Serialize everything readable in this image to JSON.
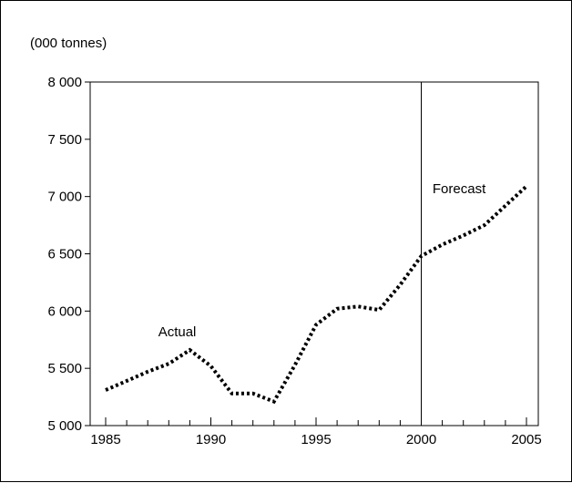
{
  "chart_data": {
    "type": "line",
    "ylabel": "(000 tonnes)",
    "x_ticks": [
      1985,
      1990,
      1995,
      2000,
      2005
    ],
    "x_tick_labels": [
      "1985",
      "1990",
      "1995",
      "2000",
      "2005"
    ],
    "y_ticks": [
      5000,
      5500,
      6000,
      6500,
      7000,
      7500,
      8000
    ],
    "y_tick_labels": [
      "5 000",
      "5 500",
      "6 000",
      "6 500",
      "7 000",
      "7 500",
      "8 000"
    ],
    "xlim": [
      1985,
      2005
    ],
    "ylim": [
      5000,
      8000
    ],
    "divider_x": 2000,
    "line_style": "dotted",
    "grid": false,
    "annotations": [
      {
        "text": "Actual",
        "x": 1988.4,
        "y": 5780
      },
      {
        "text": "Forecast",
        "x": 2001.8,
        "y": 7030
      }
    ],
    "series": [
      {
        "x": [
          1985,
          1986,
          1987,
          1988,
          1989,
          1990,
          1991,
          1992,
          1993,
          1994,
          1995,
          1996,
          1997,
          1998,
          1999,
          2000,
          2001,
          2002,
          2003,
          2004,
          2005
        ],
        "values": [
          5310,
          5390,
          5470,
          5540,
          5660,
          5520,
          5280,
          5280,
          5210,
          5530,
          5880,
          6020,
          6040,
          6010,
          6230,
          6480,
          6580,
          6660,
          6750,
          6920,
          7090
        ]
      }
    ]
  }
}
